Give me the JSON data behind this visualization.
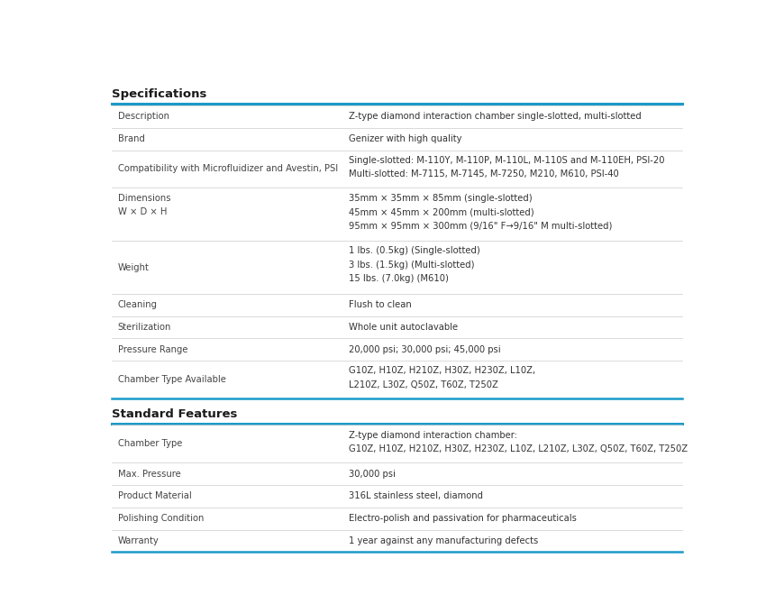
{
  "background_color": "#ffffff",
  "section1_title": "Specifications",
  "section2_title": "Standard Features",
  "header_color": "#1a9ac9",
  "text_color": "#333333",
  "label_color": "#444444",
  "section_title_color": "#1a1a1a",
  "col_split": 0.42,
  "specs_rows": [
    {
      "label": "Description",
      "value": "Z-type diamond interaction chamber single-slotted, multi-slotted",
      "lines": 1
    },
    {
      "label": "Brand",
      "value": "Genizer with high quality",
      "lines": 1
    },
    {
      "label": "Compatibility with Microfluidizer and Avestin, PSI",
      "value": "Single-slotted: M-110Y, M-110P, M-110L, M-110S and M-110EH, PSI-20\nMulti-slotted: M-7115, M-7145, M-7250, M210, M610, PSI-40",
      "lines": 2
    },
    {
      "label": "Dimensions\nW × D × H",
      "value": "35mm × 35mm × 85mm (single-slotted)\n45mm × 45mm × 200mm (multi-slotted)\n95mm × 95mm × 300mm (9/16\" F→9/16\" M multi-slotted)",
      "lines": 3
    },
    {
      "label": "Weight",
      "value": "1 lbs. (0.5kg) (Single-slotted)\n3 lbs. (1.5kg) (Multi-slotted)\n15 lbs. (7.0kg) (M610)",
      "lines": 3
    },
    {
      "label": "Cleaning",
      "value": "Flush to clean",
      "lines": 1
    },
    {
      "label": "Sterilization",
      "value": "Whole unit autoclavable",
      "lines": 1
    },
    {
      "label": "Pressure Range",
      "value": "20,000 psi; 30,000 psi; 45,000 psi",
      "lines": 1
    },
    {
      "label": "Chamber Type Available",
      "value": "G10Z, H10Z, H210Z, H30Z, H230Z, L10Z,\nL210Z, L30Z, Q50Z, T60Z, T250Z",
      "lines": 2
    }
  ],
  "features_rows": [
    {
      "label": "Chamber Type",
      "value": "Z-type diamond interaction chamber:\nG10Z, H10Z, H210Z, H30Z, H230Z, L10Z, L210Z, L30Z, Q50Z, T60Z, T250Z",
      "lines": 2
    },
    {
      "label": "Max. Pressure",
      "value": "30,000 psi",
      "lines": 1
    },
    {
      "label": "Product Material",
      "value": "316L stainless steel, diamond",
      "lines": 1
    },
    {
      "label": "Polishing Condition",
      "value": "Electro-polish and passivation for pharmaceuticals",
      "lines": 1
    },
    {
      "label": "Warranty",
      "value": "1 year against any manufacturing defects",
      "lines": 1
    }
  ]
}
